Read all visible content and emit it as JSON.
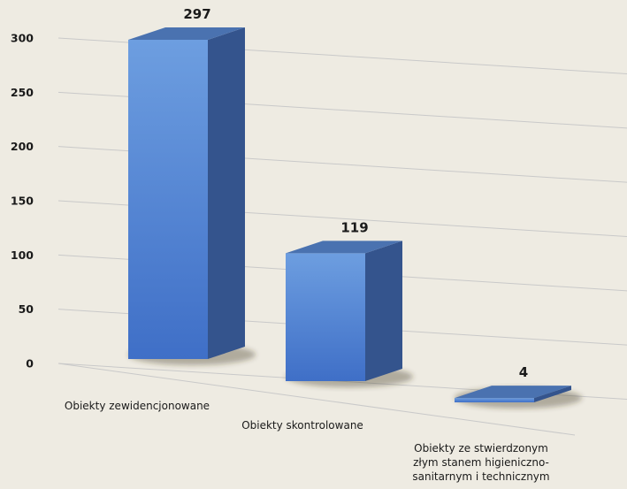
{
  "chart_data": {
    "type": "bar",
    "style": "3d-column",
    "categories": [
      "Obiekty zewidencjonowane",
      "Obiekty skontrolowane",
      "Obiekty ze stwierdzonym złym stanem higieniczno-sanitarnym i technicznym"
    ],
    "category_label_lines": [
      [
        "Obiekty zewidencjonowane"
      ],
      [
        "Obiekty skontrolowane"
      ],
      [
        "Obiekty ze stwierdzonym",
        "złym stanem higieniczno-",
        "sanitarnym i technicznym"
      ]
    ],
    "values": [
      297,
      119,
      4
    ],
    "value_labels": [
      "297",
      "119",
      "4"
    ],
    "ylim": [
      0,
      300
    ],
    "yticks": [
      0,
      50,
      100,
      150,
      200,
      250,
      300
    ],
    "ytick_labels": [
      "0",
      "50",
      "100",
      "150",
      "200",
      "250",
      "300"
    ],
    "grid": true,
    "legend": false,
    "title": "",
    "xlabel": "",
    "ylabel": "",
    "colors": {
      "background": "#eeebe2",
      "bar_front_top": "#6d9ee0",
      "bar_front_bottom": "#3f6fc7",
      "bar_side": "#34548d",
      "bar_top": "#4a72b0",
      "grid": "#c9c9c9"
    }
  }
}
